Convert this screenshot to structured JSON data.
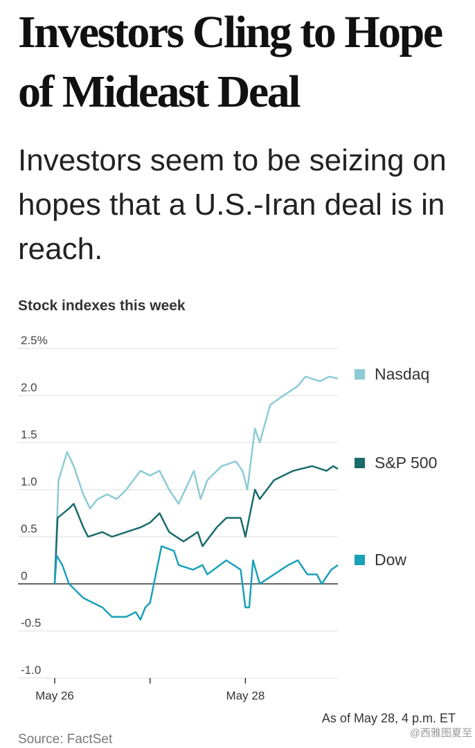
{
  "title": "Investors Cling to Hope of Mideast Deal",
  "subtitle": "Investors seem to be seizing on hopes that a U.S.-Iran deal is in reach.",
  "chart_data": {
    "type": "line",
    "title": "Stock indexes this week",
    "xlim": [
      0,
      2.97
    ],
    "xticks": [
      {
        "value": 0,
        "label": "May 26"
      },
      {
        "value": 1,
        "label": null
      },
      {
        "value": 2,
        "label": "May 28"
      }
    ],
    "ylim": [
      -1,
      2.5
    ],
    "yticks": [
      {
        "value": 2.5,
        "label": "2.5%"
      },
      {
        "value": 2,
        "label": "2.0"
      },
      1.5,
      {
        "value": 1,
        "label": "1.0"
      },
      0.5,
      0,
      -0.5,
      {
        "value": -1,
        "label": "-1.0"
      }
    ],
    "grid": true,
    "series": [
      {
        "name": "Nasdaq",
        "color": "#8ccbd6",
        "x": [
          0,
          0.04,
          0.13,
          0.2,
          0.3,
          0.37,
          0.45,
          0.55,
          0.65,
          0.75,
          0.9,
          1.0,
          1.1,
          1.2,
          1.3,
          1.46,
          1.53,
          1.6,
          1.75,
          1.9,
          1.97,
          2.02,
          2.1,
          2.15,
          2.26,
          2.4,
          2.55,
          2.63,
          2.78,
          2.88,
          2.97
        ],
        "values": [
          0,
          1.1,
          1.4,
          1.25,
          0.95,
          0.8,
          0.9,
          0.95,
          0.9,
          1.0,
          1.2,
          1.15,
          1.2,
          1.0,
          0.85,
          1.2,
          0.9,
          1.1,
          1.25,
          1.3,
          1.2,
          1.0,
          1.65,
          1.5,
          1.9,
          2.0,
          2.1,
          2.2,
          2.15,
          2.2,
          2.18
        ]
      },
      {
        "name": "S&P 500",
        "color": "#1a6b6b",
        "x": [
          0,
          0.03,
          0.15,
          0.2,
          0.3,
          0.35,
          0.5,
          0.6,
          0.75,
          0.9,
          1.0,
          1.1,
          1.2,
          1.35,
          1.5,
          1.55,
          1.7,
          1.8,
          1.95,
          2.0,
          2.1,
          2.15,
          2.3,
          2.5,
          2.7,
          2.85,
          2.92,
          2.97
        ],
        "values": [
          0,
          0.7,
          0.8,
          0.85,
          0.6,
          0.5,
          0.55,
          0.5,
          0.55,
          0.6,
          0.65,
          0.75,
          0.55,
          0.45,
          0.55,
          0.4,
          0.6,
          0.7,
          0.7,
          0.5,
          1.0,
          0.9,
          1.1,
          1.2,
          1.25,
          1.2,
          1.25,
          1.22
        ]
      },
      {
        "name": "Dow",
        "color": "#1aa0b8",
        "x": [
          0,
          0.02,
          0.08,
          0.15,
          0.3,
          0.4,
          0.5,
          0.6,
          0.75,
          0.85,
          0.9,
          0.95,
          1.0,
          1.05,
          1.12,
          1.25,
          1.3,
          1.45,
          1.55,
          1.6,
          1.8,
          1.95,
          2.0,
          2.04,
          2.08,
          2.15,
          2.3,
          2.45,
          2.55,
          2.65,
          2.75,
          2.8,
          2.9,
          2.97
        ],
        "values": [
          0,
          0.3,
          0.2,
          0,
          -0.15,
          -0.2,
          -0.25,
          -0.35,
          -0.35,
          -0.3,
          -0.38,
          -0.25,
          -0.2,
          0.05,
          0.4,
          0.35,
          0.2,
          0.15,
          0.2,
          0.1,
          0.25,
          0.15,
          -0.25,
          -0.25,
          0.25,
          0,
          0.1,
          0.2,
          0.25,
          0.1,
          0.1,
          0,
          0.15,
          0.2
        ]
      }
    ],
    "note": "As of May 28, 4 p.m. ET",
    "source": "Source: FactSet"
  },
  "watermark": "@西雅图夏至"
}
